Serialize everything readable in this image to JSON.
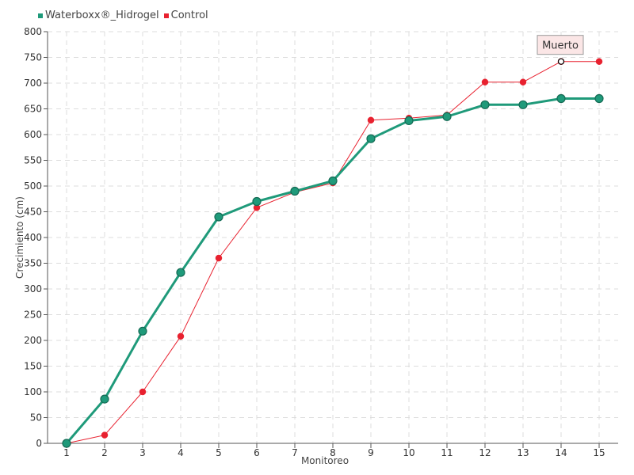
{
  "chart_data": {
    "type": "line",
    "xlabel": "Monitoreo",
    "ylabel": "Crecimiento (cm)",
    "x": [
      1,
      2,
      3,
      4,
      5,
      6,
      7,
      8,
      9,
      10,
      11,
      12,
      13,
      14,
      15
    ],
    "ylim": [
      0,
      800
    ],
    "yticks": [
      0,
      50,
      100,
      150,
      200,
      250,
      300,
      350,
      400,
      450,
      500,
      550,
      600,
      650,
      700,
      750,
      800
    ],
    "grid": true,
    "legend_position": "top-left",
    "series": [
      {
        "name": "Waterboxx®_Hidrogel",
        "color": "#1f9a7a",
        "values": [
          0,
          86,
          218,
          332,
          440,
          470,
          490,
          510,
          592,
          627,
          635,
          658,
          658,
          670,
          670
        ]
      },
      {
        "name": "Control",
        "color": "#e8212f",
        "values": [
          0,
          16,
          100,
          208,
          360,
          458,
          488,
          506,
          628,
          632,
          638,
          702,
          702,
          742,
          742
        ]
      }
    ],
    "annotations": [
      {
        "series": "Control",
        "x": 14,
        "text": "Muerto"
      }
    ]
  }
}
